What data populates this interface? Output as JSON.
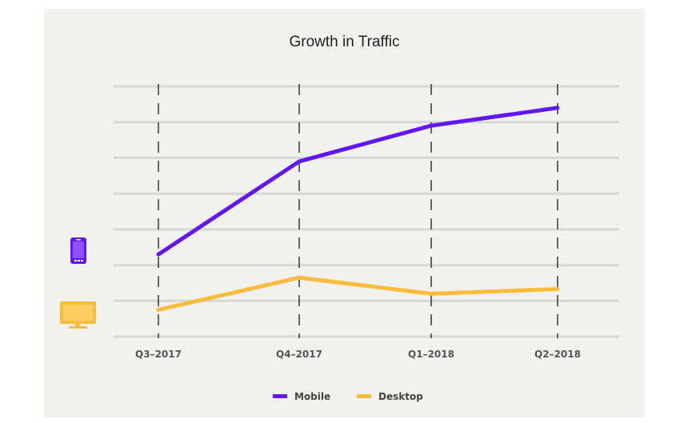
{
  "colors": {
    "mobile": "#6216f2",
    "desktop": "#f9bd3e",
    "grid": "#d6d6d3",
    "panel": "#f1f1ee"
  },
  "icons": {
    "mobile": "smartphone-icon",
    "desktop": "monitor-icon"
  },
  "chart_data": {
    "type": "line",
    "title": "Growth in Traffic",
    "xlabel": "",
    "ylabel": "",
    "categories": [
      "Q3–2017",
      "Q4–2017",
      "Q1–2018",
      "Q2–2018"
    ],
    "ylim": [
      0,
      7
    ],
    "grid": true,
    "legend_position": "bottom",
    "series": [
      {
        "name": "Mobile",
        "values": [
          2.3,
          4.9,
          5.9,
          6.4
        ]
      },
      {
        "name": "Desktop",
        "values": [
          0.75,
          1.65,
          1.2,
          1.33
        ]
      }
    ]
  }
}
